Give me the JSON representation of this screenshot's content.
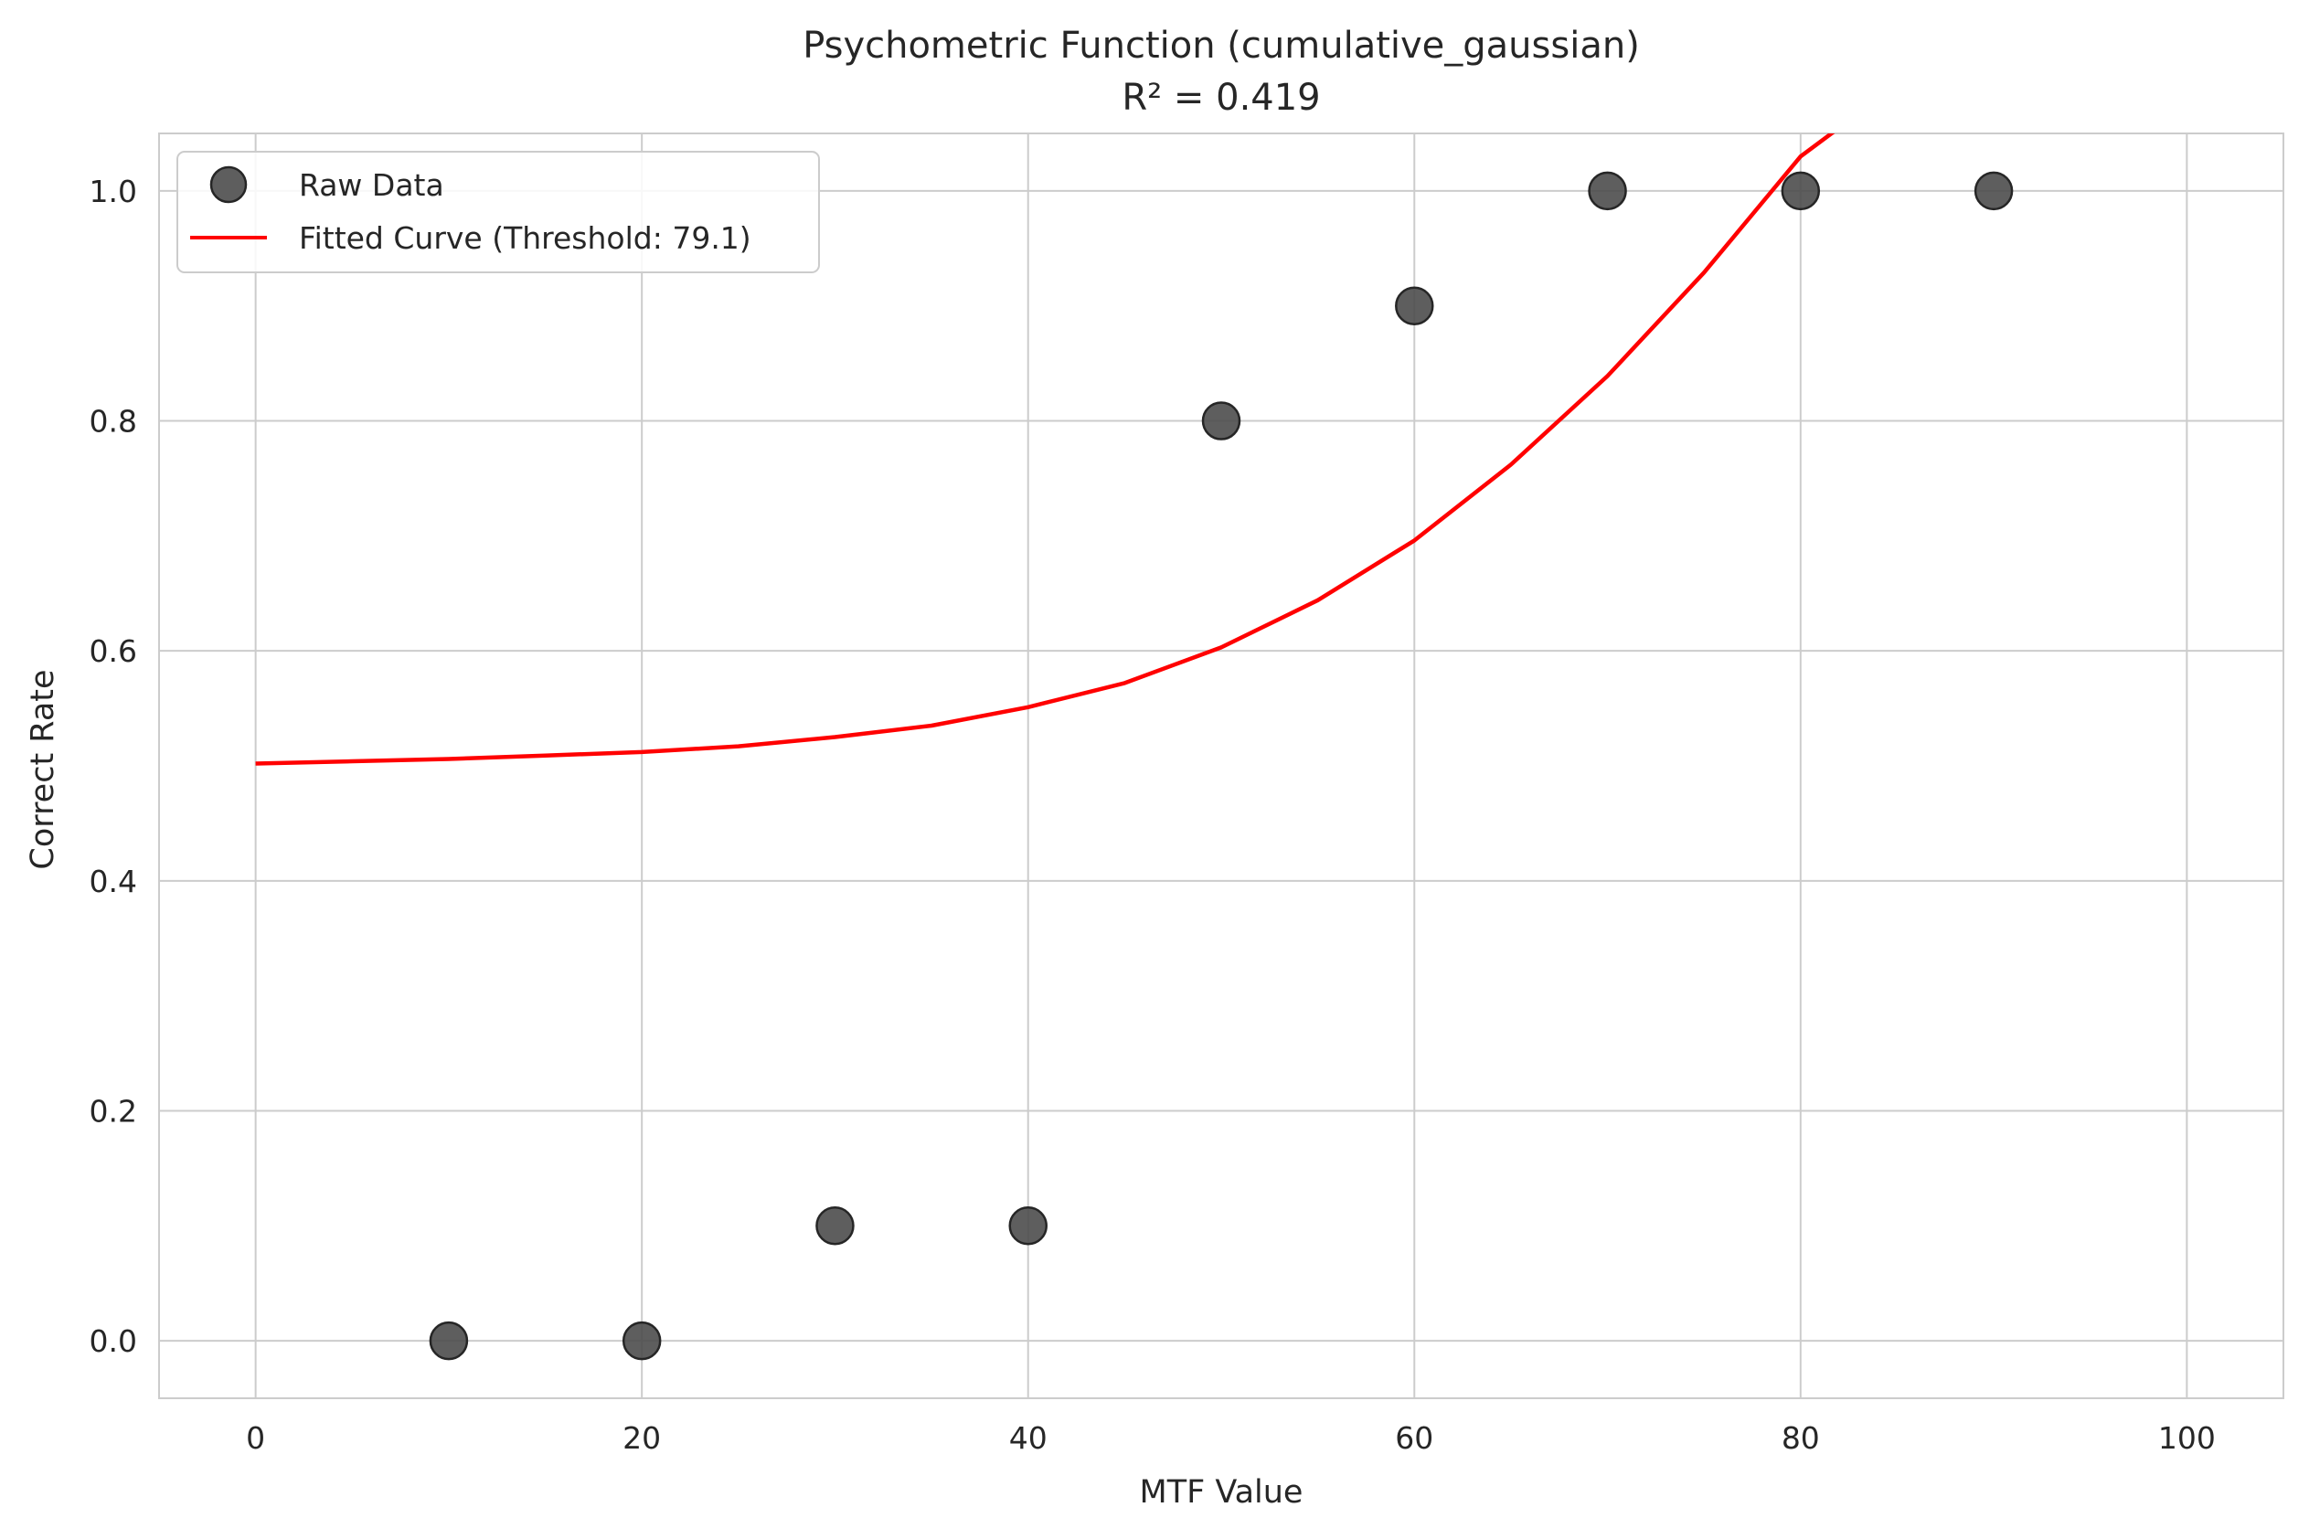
{
  "chart_data": {
    "type": "scatter",
    "title": "Psychometric Function (cumulative_gaussian)",
    "subtitle": "R² = 0.419",
    "xlabel": "MTF Value",
    "ylabel": "Correct Rate",
    "xlim": [
      -5,
      105
    ],
    "ylim": [
      -0.05,
      1.05
    ],
    "xticks": [
      0,
      20,
      40,
      60,
      80,
      100
    ],
    "xtick_labels": [
      "0",
      "20",
      "40",
      "60",
      "80",
      "100"
    ],
    "yticks": [
      0.0,
      0.2,
      0.4,
      0.6,
      0.8,
      1.0
    ],
    "ytick_labels": [
      "0.0",
      "0.2",
      "0.4",
      "0.6",
      "0.8",
      "1.0"
    ],
    "grid": true,
    "legend_position": "top-left",
    "series": [
      {
        "name": "Raw Data",
        "kind": "scatter",
        "color": "#4d4d4d",
        "x": [
          10,
          20,
          30,
          40,
          50,
          60,
          70,
          80,
          90
        ],
        "y": [
          0.0,
          0.0,
          0.1,
          0.1,
          0.8,
          0.9,
          1.0,
          1.0,
          1.0
        ]
      },
      {
        "name": "Fitted Curve (Threshold: 79.1)",
        "kind": "line",
        "color": "#ff0000",
        "x": [
          0,
          5,
          10,
          15,
          20,
          25,
          30,
          35,
          40,
          45,
          50,
          55,
          60,
          65,
          70,
          75,
          80,
          82
        ],
        "y": [
          0.502,
          0.504,
          0.506,
          0.509,
          0.512,
          0.517,
          0.525,
          0.535,
          0.551,
          0.572,
          0.603,
          0.644,
          0.696,
          0.762,
          0.839,
          0.929,
          1.03,
          1.055
        ]
      }
    ]
  }
}
